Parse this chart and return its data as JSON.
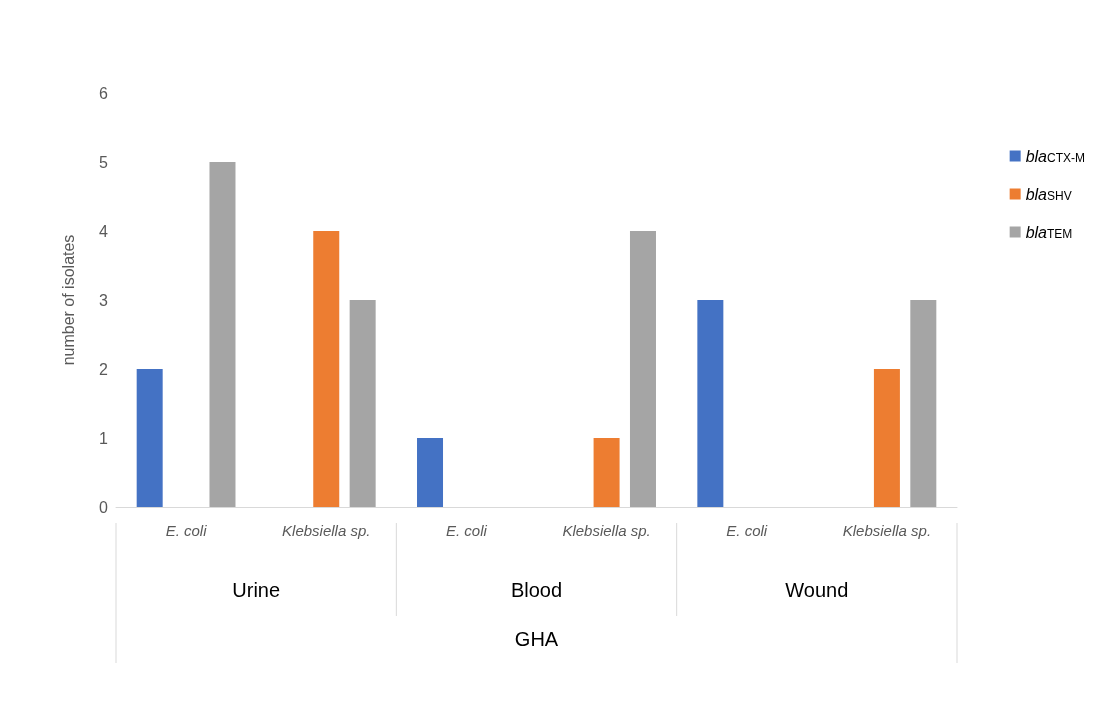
{
  "chart_data": {
    "type": "bar",
    "ylabel": "number of isolates",
    "xlabel": "GHA",
    "categories": [
      "E. coli",
      "Klebsiella sp.",
      "E. coli",
      "Klebsiella sp.",
      "E. coli",
      "Klebsiella sp."
    ],
    "annotations": [
      "Urine",
      "Blood",
      "Wound"
    ],
    "series": [
      {
        "name": "bla$_{CTX-M}$",
        "color": "#4472c4",
        "values": [
          2,
          0,
          1,
          0,
          3,
          0
        ]
      },
      {
        "name": "bla$_{SHV}$",
        "color": "#ed7d31",
        "values": [
          0,
          4,
          0,
          1,
          0,
          2
        ]
      },
      {
        "name": "bla$_{TEM}$",
        "color": "#a5a5a5",
        "values": [
          5,
          3,
          0,
          4,
          0,
          3
        ]
      }
    ],
    "ylim": [
      0,
      6
    ],
    "yticks": [
      0,
      1,
      2,
      3,
      4,
      5,
      6
    ],
    "grid": false,
    "legend": "top right"
  }
}
